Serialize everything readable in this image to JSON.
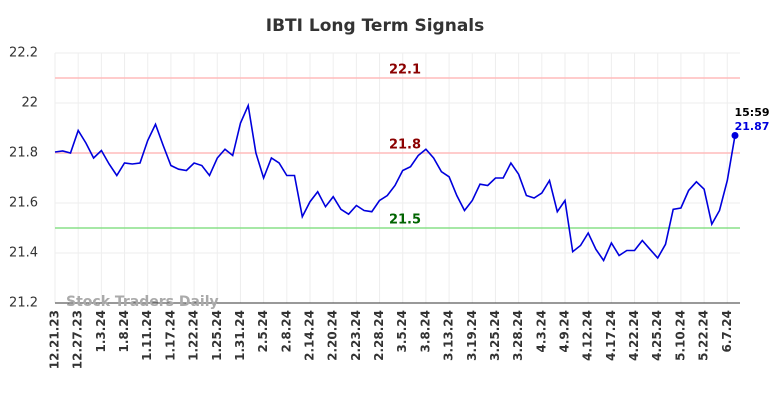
{
  "chart_data": {
    "type": "line",
    "title": "IBTI Long Term Signals",
    "categories": [
      "12.21.23",
      null,
      null,
      "12.27.23",
      null,
      null,
      "1.3.24",
      null,
      null,
      "1.8.24",
      null,
      null,
      "1.11.24",
      null,
      null,
      "1.17.24",
      null,
      null,
      "1.22.24",
      null,
      null,
      "1.25.24",
      null,
      null,
      "1.31.24",
      null,
      null,
      "2.5.24",
      null,
      null,
      "2.8.24",
      null,
      null,
      "2.14.24",
      null,
      null,
      "2.20.24",
      null,
      null,
      "2.23.24",
      null,
      null,
      "2.28.24",
      null,
      null,
      "3.5.24",
      null,
      null,
      "3.8.24",
      null,
      null,
      "3.13.24",
      null,
      null,
      "3.19.24",
      null,
      null,
      "3.25.24",
      null,
      null,
      "3.28.24",
      null,
      null,
      "4.3.24",
      null,
      null,
      "4.9.24",
      null,
      null,
      "4.12.24",
      null,
      null,
      "4.17.24",
      null,
      null,
      "4.22.24",
      null,
      null,
      "4.25.24",
      null,
      null,
      "5.10.24",
      null,
      null,
      "5.22.24",
      null,
      null,
      "6.7.24",
      null
    ],
    "values": [
      21.804,
      21.808,
      21.8,
      21.89,
      21.84,
      21.78,
      21.81,
      21.756,
      21.71,
      21.76,
      21.756,
      21.76,
      21.85,
      21.915,
      21.83,
      21.75,
      21.735,
      21.73,
      21.76,
      21.75,
      21.71,
      21.78,
      21.815,
      21.79,
      21.92,
      21.99,
      21.8,
      21.7,
      21.78,
      21.76,
      21.71,
      21.71,
      21.545,
      21.605,
      21.645,
      21.585,
      21.625,
      21.575,
      21.555,
      21.59,
      21.57,
      21.565,
      21.61,
      21.63,
      21.67,
      21.73,
      21.745,
      21.79,
      21.815,
      21.78,
      21.725,
      21.705,
      21.63,
      21.57,
      21.61,
      21.675,
      21.67,
      21.7,
      21.7,
      21.76,
      21.715,
      21.63,
      21.62,
      21.64,
      21.69,
      21.565,
      21.61,
      21.405,
      21.43,
      21.48,
      21.415,
      21.37,
      21.44,
      21.39,
      21.41,
      21.41,
      21.45,
      21.415,
      21.38,
      21.435,
      21.575,
      21.58,
      21.65,
      21.685,
      21.655,
      21.515,
      21.57,
      21.69,
      21.87
    ],
    "color": "#0000dd",
    "ylim": [
      21.2,
      22.2
    ],
    "yticks": [
      21.2,
      21.4,
      21.6,
      21.8,
      22,
      22.2
    ],
    "grid": true,
    "hlines": [
      {
        "value": 22.1,
        "color": "#ffbbbb",
        "label_color": "#8b0000"
      },
      {
        "value": 21.8,
        "color": "#ffbbbb",
        "label_color": "#8b0000"
      },
      {
        "value": 21.5,
        "color": "#88e088",
        "label_color": "#006400"
      }
    ],
    "last_time": "15:59",
    "watermark": "Stock Traders Daily"
  }
}
